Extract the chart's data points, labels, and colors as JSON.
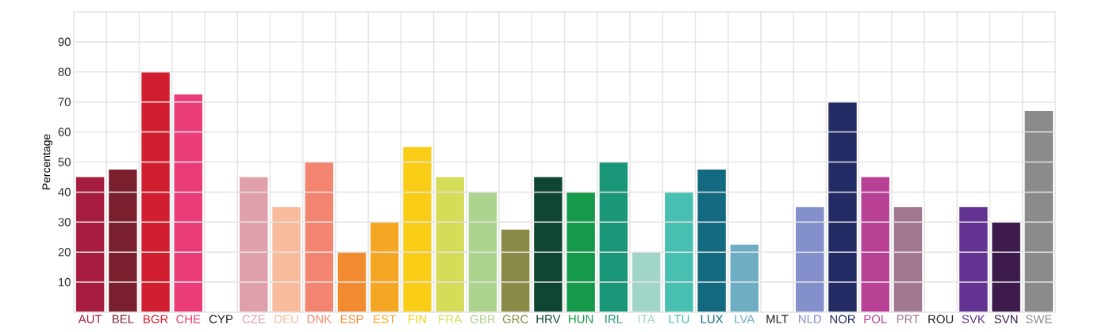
{
  "chart_data": {
    "type": "bar",
    "ylabel": "Percentage",
    "categories": [
      "AUT",
      "BEL",
      "BGR",
      "CHE",
      "CYP",
      "CZE",
      "DEU",
      "DNK",
      "ESP",
      "EST",
      "FIN",
      "FRA",
      "GBR",
      "GRC",
      "HRV",
      "HUN",
      "IRL",
      "ITA",
      "LTU",
      "LUX",
      "LVA",
      "MLT",
      "NLD",
      "NOR",
      "POL",
      "PRT",
      "ROU",
      "SVK",
      "SVN",
      "SWE"
    ],
    "values": [
      45,
      47.5,
      80,
      72.5,
      null,
      45,
      35,
      50,
      20,
      30,
      55,
      45,
      40,
      27.5,
      45,
      40,
      50,
      20,
      40,
      47.5,
      22.5,
      null,
      35,
      70,
      45,
      35,
      null,
      35,
      30,
      67
    ],
    "colors": [
      "#a51c40",
      "#7a1f2e",
      "#d21f30",
      "#ea3c79",
      null,
      "#e0a0ab",
      "#f8bb9c",
      "#f38570",
      "#f28b30",
      "#f5a623",
      "#f9cd15",
      "#d5dd58",
      "#acd38d",
      "#8a8a47",
      "#0f4633",
      "#159a4b",
      "#1a9778",
      "#a1d5ca",
      "#47bfb1",
      "#136a80",
      "#6eadc4",
      null,
      "#8390cb",
      "#232b65",
      "#b84196",
      "#a27790",
      null,
      "#623393",
      "#3c1a4c",
      "#8a8b8a"
    ],
    "ylim": [
      0,
      100
    ],
    "yticks": [
      10,
      20,
      30,
      40,
      50,
      60,
      70,
      80,
      90
    ],
    "grid": true
  }
}
